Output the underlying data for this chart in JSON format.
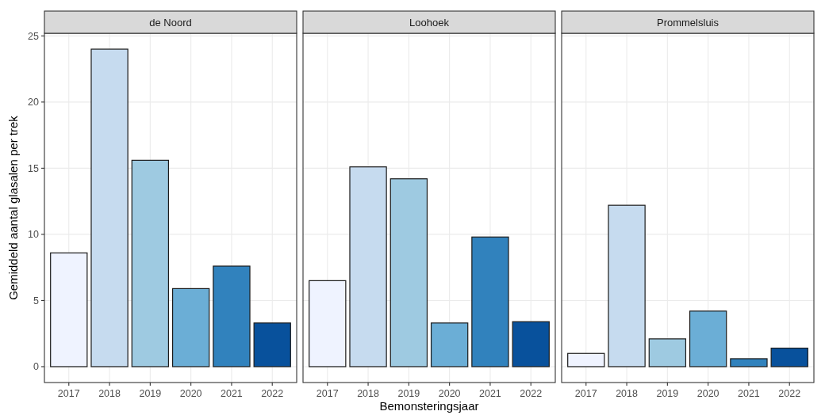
{
  "chart_data": [
    {
      "type": "bar",
      "title": "de Noord",
      "ylabel": "Gemiddeld aantal glasalen per trek",
      "categories": [
        "2017",
        "2018",
        "2019",
        "2020",
        "2021",
        "2022"
      ],
      "values": [
        8.6,
        24.0,
        15.6,
        5.9,
        7.6,
        3.3
      ],
      "colors": [
        "#eff3ff",
        "#c6dbef",
        "#9ecae1",
        "#6baed6",
        "#3182bd",
        "#08519c"
      ],
      "ylim": [
        -1.2,
        25.2
      ],
      "yticks": [
        0,
        5,
        10,
        15,
        20,
        25
      ],
      "grid": true
    },
    {
      "type": "bar",
      "title": "Loohoek",
      "xlabel": "Bemonsteringsjaar",
      "categories": [
        "2017",
        "2018",
        "2019",
        "2020",
        "2021",
        "2022"
      ],
      "values": [
        6.5,
        15.1,
        14.2,
        3.3,
        9.8,
        3.4
      ],
      "colors": [
        "#eff3ff",
        "#c6dbef",
        "#9ecae1",
        "#6baed6",
        "#3182bd",
        "#08519c"
      ],
      "ylim": [
        -1.2,
        25.2
      ],
      "yticks": [
        0,
        5,
        10,
        15,
        20,
        25
      ],
      "grid": true,
      "tick_labels": "x"
    },
    {
      "type": "bar",
      "title": "Prommelsluis",
      "categories": [
        "2017",
        "2018",
        "2019",
        "2020",
        "2021",
        "2022"
      ],
      "values": [
        1.0,
        12.2,
        2.1,
        4.2,
        0.6,
        1.4
      ],
      "colors": [
        "#eff3ff",
        "#c6dbef",
        "#9ecae1",
        "#6baed6",
        "#3182bd",
        "#08519c"
      ],
      "ylim": [
        -1.2,
        25.2
      ],
      "yticks": [
        0,
        5,
        10,
        15,
        20,
        25
      ],
      "grid": true,
      "tick_labels": "x"
    }
  ]
}
